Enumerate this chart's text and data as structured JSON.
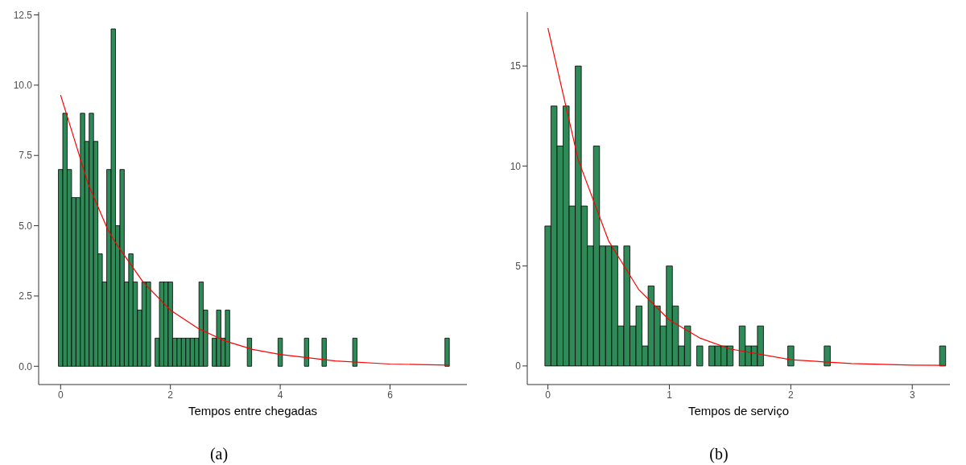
{
  "chart_data": [
    {
      "type": "histogram",
      "xlabel": "Tempos entre chegadas",
      "annotations": [
        "(a)"
      ],
      "grid": false,
      "xlim": [
        -0.4,
        7.4
      ],
      "xticks": [
        0,
        2,
        4,
        6
      ],
      "ylim": [
        -0.65,
        12.6
      ],
      "yticks": [
        {
          "value": 0,
          "label": "0.0"
        },
        {
          "value": 2.5,
          "label": "2.5"
        },
        {
          "value": 5,
          "label": "5.0"
        },
        {
          "value": 7.5,
          "label": "7.5"
        },
        {
          "value": 10,
          "label": "10.0"
        },
        {
          "value": 12.5,
          "label": "12.5"
        }
      ],
      "series": [
        {
          "color": "#2e8b57",
          "bins": [
            -0.04,
            0.04,
            0.12,
            0.2,
            0.28,
            0.36,
            0.44,
            0.52,
            0.6,
            0.68,
            0.76,
            0.84,
            0.92,
            1,
            1.08,
            1.16,
            1.24,
            1.32,
            1.4,
            1.48,
            1.56,
            1.64,
            1.72,
            1.8,
            1.88,
            1.96,
            2.04,
            2.12,
            2.2,
            2.28,
            2.36,
            2.44,
            2.52,
            2.6,
            2.68,
            2.76,
            2.84,
            2.92,
            3,
            3.08,
            3.16,
            3.24,
            3.32,
            3.4,
            3.48,
            3.56,
            3.64,
            3.72,
            3.8,
            3.88,
            3.96,
            4.04,
            4.12,
            4.2,
            4.28,
            4.36,
            4.44,
            4.52,
            4.6,
            4.68,
            4.76,
            4.84,
            4.92,
            5,
            5.08,
            5.16,
            5.24,
            5.32,
            5.4,
            5.48,
            5.56,
            5.64,
            5.72,
            5.8,
            5.88,
            5.96,
            6.04,
            6.12,
            6.2,
            6.28,
            6.36,
            6.44,
            6.52,
            6.6,
            6.68,
            6.76,
            6.84,
            6.92,
            7,
            7.08
          ],
          "values": [
            7,
            9,
            7,
            6,
            6,
            9,
            8,
            9,
            8,
            4,
            3,
            7,
            12,
            5,
            7,
            3,
            4,
            3,
            2,
            3,
            3,
            0,
            1,
            3,
            3,
            3,
            1,
            1,
            1,
            1,
            1,
            1,
            3,
            2,
            0,
            1,
            2,
            1,
            2,
            0,
            0,
            0,
            0,
            1,
            0,
            0,
            0,
            0,
            0,
            0,
            1,
            0,
            0,
            0,
            0,
            0,
            1,
            0,
            0,
            0,
            1,
            0,
            0,
            0,
            0,
            0,
            0,
            1,
            0,
            0,
            0,
            0,
            0,
            0,
            0,
            0,
            0,
            0,
            0,
            0,
            0,
            0,
            0,
            0,
            0,
            0,
            0,
            0,
            1
          ]
        },
        {
          "type": "line",
          "color": "#ff0000",
          "marker": "none",
          "x": [
            0,
            0.5,
            0.85,
            1,
            1.5,
            2,
            2.5,
            3,
            3.5,
            4,
            5,
            6,
            7.07
          ],
          "values": [
            9.65,
            6.5,
            4.9,
            4.4,
            3.0,
            2.0,
            1.35,
            0.9,
            0.6,
            0.42,
            0.19,
            0.08,
            0.04
          ]
        }
      ]
    },
    {
      "type": "histogram",
      "xlabel": "Tempos de serviço",
      "annotations": [
        "(b)"
      ],
      "grid": false,
      "xlim": [
        -0.17,
        3.31
      ],
      "xticks": [
        0,
        1,
        2,
        3
      ],
      "ylim": [
        -0.93,
        17.7
      ],
      "yticks": [
        0,
        5,
        10,
        15
      ],
      "series": [
        {
          "color": "#2e8b57",
          "bins": [
            -0.025,
            0.025,
            0.075,
            0.125,
            0.175,
            0.225,
            0.275,
            0.325,
            0.375,
            0.425,
            0.475,
            0.525,
            0.575,
            0.625,
            0.675,
            0.725,
            0.775,
            0.825,
            0.875,
            0.925,
            0.975,
            1.025,
            1.075,
            1.125,
            1.175,
            1.225,
            1.275,
            1.325,
            1.375,
            1.425,
            1.475,
            1.525,
            1.575,
            1.625,
            1.675,
            1.725,
            1.775,
            1.825,
            1.875,
            1.925,
            1.975,
            2.025,
            2.075,
            2.125,
            2.175,
            2.225,
            2.275,
            2.325,
            2.375,
            2.425,
            2.475,
            2.525,
            2.575,
            2.625,
            2.675,
            2.725,
            2.775,
            2.825,
            2.875,
            2.925,
            2.975,
            3.025,
            3.075,
            3.125,
            3.175,
            3.225,
            3.275
          ],
          "values": [
            7,
            13,
            11,
            13,
            8,
            15,
            8,
            6,
            11,
            6,
            6,
            6,
            2,
            6,
            2,
            3,
            1,
            4,
            3,
            2,
            5,
            3,
            1,
            2,
            0,
            1,
            0,
            1,
            1,
            1,
            1,
            0,
            2,
            1,
            1,
            2,
            0,
            0,
            0,
            0,
            1,
            0,
            0,
            0,
            0,
            0,
            1,
            0,
            0,
            0,
            0,
            0,
            0,
            0,
            0,
            0,
            0,
            0,
            0,
            0,
            0,
            0,
            0,
            0,
            0,
            1
          ]
        },
        {
          "type": "line",
          "color": "#ff0000",
          "marker": "none",
          "x": [
            0,
            0.25,
            0.5,
            0.75,
            1,
            1.25,
            1.5,
            2,
            2.5,
            3,
            3.27
          ],
          "values": [
            16.9,
            10.3,
            6.25,
            3.8,
            2.3,
            1.4,
            0.85,
            0.31,
            0.12,
            0.04,
            0.03
          ]
        }
      ]
    }
  ]
}
